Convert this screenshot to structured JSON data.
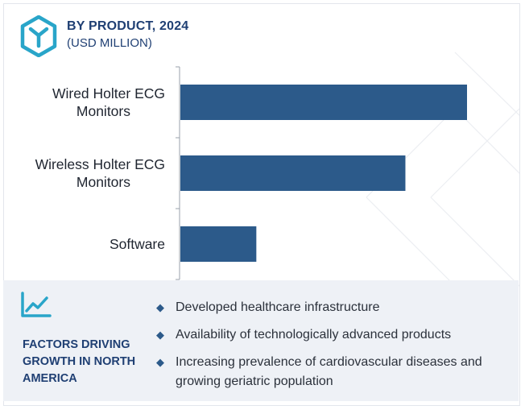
{
  "header": {
    "title": "BY PRODUCT, 2024",
    "subtitle": "(USD MILLION)",
    "logo_icon": "hexagon-y-logo-icon"
  },
  "chart_data": {
    "type": "bar",
    "orientation": "horizontal",
    "categories": [
      [
        "Wired Holter ECG",
        "Monitors"
      ],
      [
        "Wireless Holter ECG",
        "Monitors"
      ],
      [
        "Software"
      ]
    ],
    "values": [
      100,
      78.5,
      26.5
    ],
    "value_note_scale": "relative",
    "title": "BY PRODUCT, 2024",
    "xlabel": "",
    "ylabel": "",
    "xlim": [
      0,
      100
    ],
    "grid": false,
    "bar_color": "#2c5a8a"
  },
  "factors": {
    "icon": "trend-line-icon",
    "title": "FACTORS DRIVING GROWTH IN NORTH AMERICA",
    "bullet_icon": "diamond-icon",
    "items": [
      "Developed healthcare infrastructure",
      "Availability of technologically advanced products",
      "Increasing prevalence of cardiovascular diseases and growing geriatric population"
    ]
  },
  "colors": {
    "accent": "#29a5c9",
    "navy": "#1f3f73",
    "bar": "#2c5a8a",
    "panel_bg": "#eef1f6"
  }
}
